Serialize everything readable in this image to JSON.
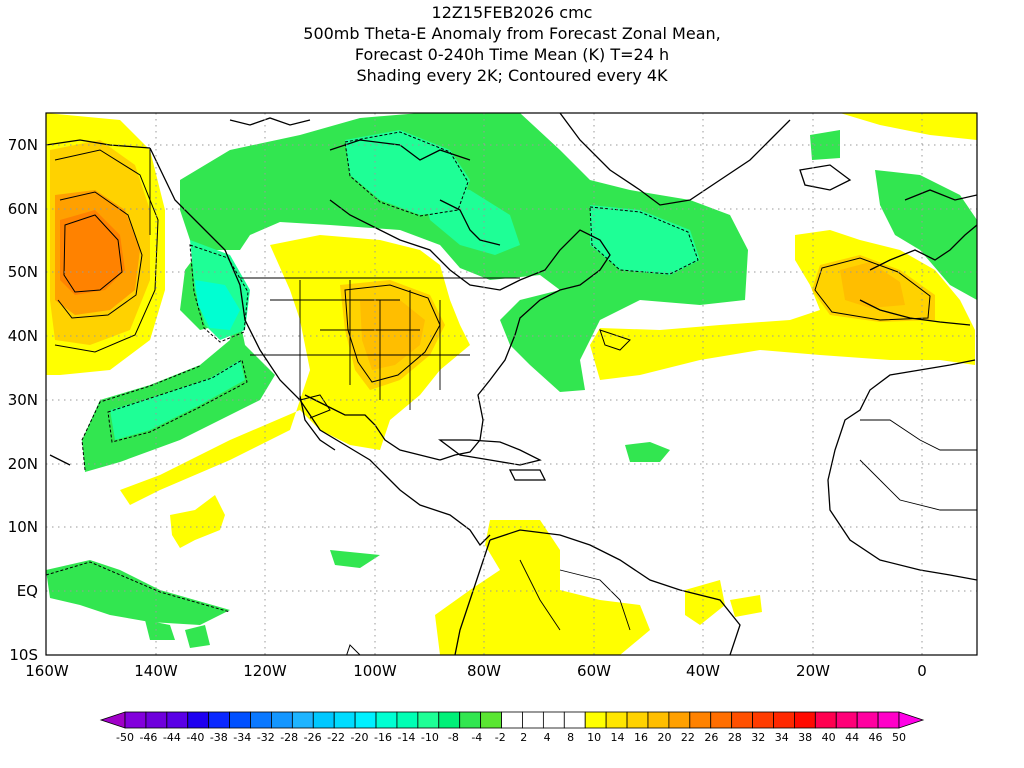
{
  "title_lines": [
    "12Z15FEB2026 cmc",
    "500mb Theta-E Anomaly from Forecast Zonal Mean,",
    "Forecast 0-240h Time Mean (K) T=24 h",
    "Shading every 2K; Contoured every 4K"
  ],
  "map": {
    "lon_range": [
      -160,
      10
    ],
    "lat_range": [
      -10,
      75
    ],
    "lon_ticks": [
      "160W",
      "140W",
      "120W",
      "100W",
      "80W",
      "60W",
      "40W",
      "20W",
      "0"
    ],
    "lat_ticks": [
      "70N",
      "60N",
      "50N",
      "40N",
      "30N",
      "20N",
      "10N",
      "EQ",
      "10S"
    ],
    "gridlines": "dotted every 10 degrees"
  },
  "colorbar": {
    "labels": [
      "-50",
      "-46",
      "-44",
      "-40",
      "-38",
      "-34",
      "-32",
      "-28",
      "-26",
      "-22",
      "-20",
      "-16",
      "-14",
      "-10",
      "-8",
      "-4",
      "-2",
      "2",
      "4",
      "8",
      "10",
      "14",
      "16",
      "20",
      "22",
      "26",
      "28",
      "32",
      "34",
      "38",
      "40",
      "44",
      "46",
      "50"
    ],
    "colors": [
      "#a000c8",
      "#8200dc",
      "#6e00dc",
      "#5a00e6",
      "#1e00f0",
      "#0a28ff",
      "#0050ff",
      "#0a78ff",
      "#1496ff",
      "#1eb4ff",
      "#00c8ff",
      "#00dcff",
      "#00f0ff",
      "#00ffd2",
      "#00ffb4",
      "#1eff96",
      "#00f078",
      "#32e650",
      "#5ae632",
      "#ffffff",
      "#ffffff",
      "#ffffff",
      "#ffffff",
      "#ffff00",
      "#ffe600",
      "#ffd200",
      "#ffbe00",
      "#ffa000",
      "#ff8200",
      "#ff6e00",
      "#ff5000",
      "#ff3c00",
      "#ff2800",
      "#ff0a00",
      "#ff0050",
      "#ff0078",
      "#ff00a0",
      "#ff00c8",
      "#ff00e6"
    ]
  },
  "anomaly_regions": [
    {
      "name": "Gulf of Alaska warm anomaly",
      "sign": "positive",
      "peak": "20"
    },
    {
      "name": "Pacific Northwest to Hawaii cold anomaly",
      "sign": "negative",
      "peak": "-14"
    },
    {
      "name": "Canada cold anomaly",
      "sign": "negative",
      "peak": "-10"
    },
    {
      "name": "Central United States warm anomaly",
      "sign": "positive",
      "peak": "14"
    },
    {
      "name": "Europe warm anomaly",
      "sign": "positive",
      "peak": "14"
    }
  ]
}
